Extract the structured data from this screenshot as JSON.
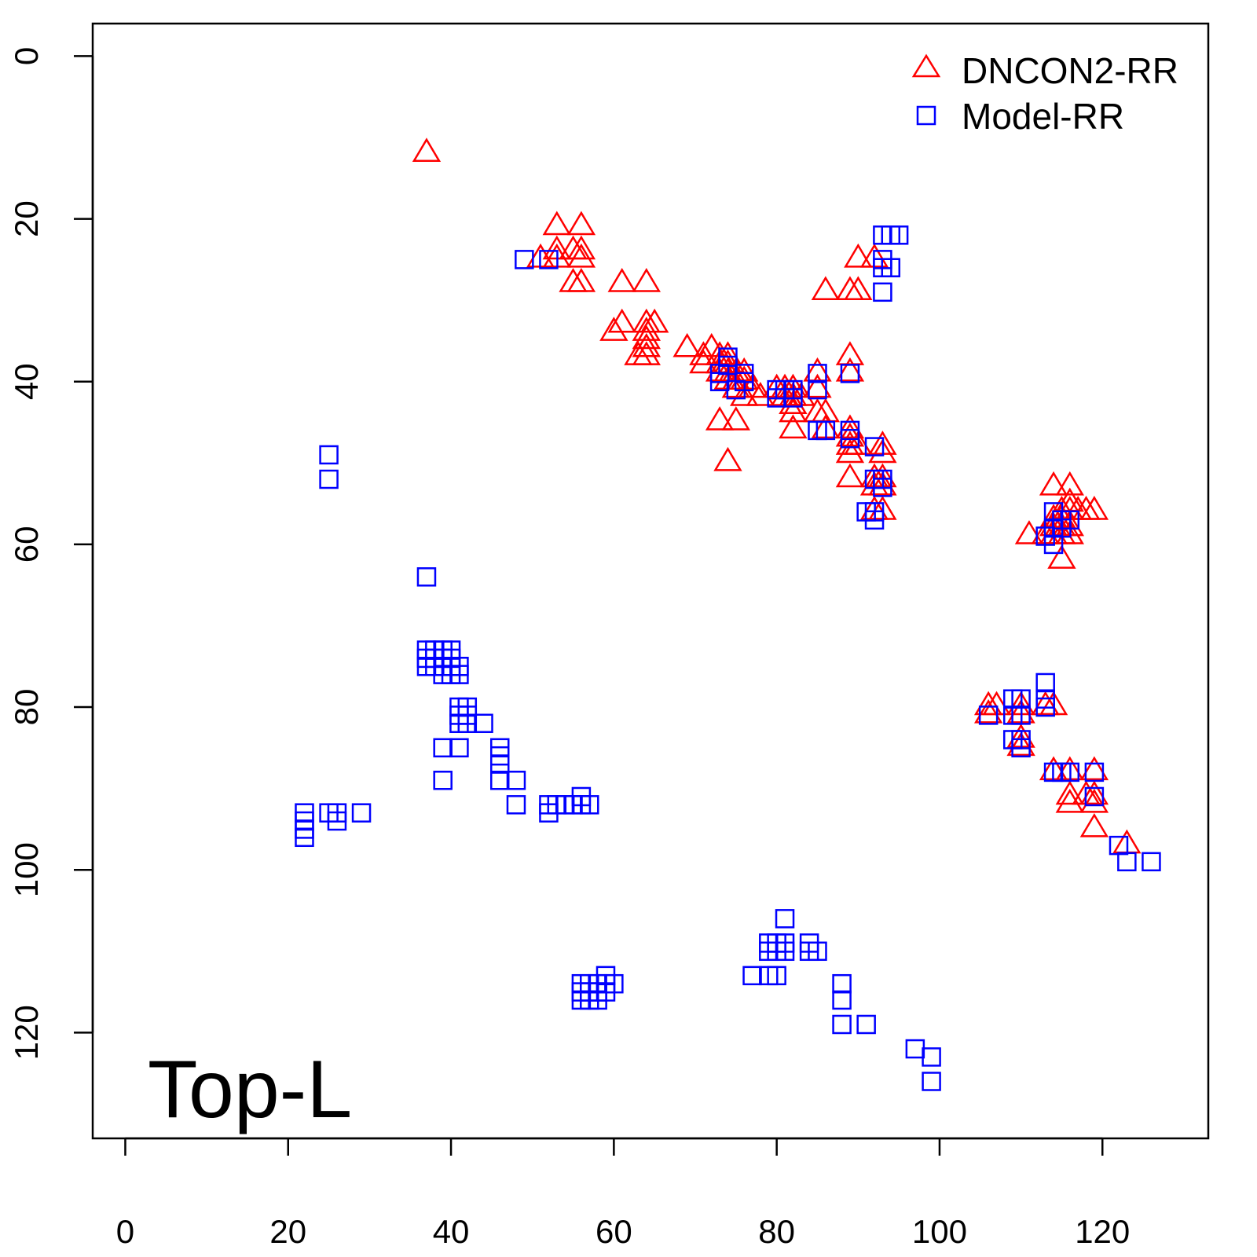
{
  "chart_data": {
    "type": "scatter",
    "title": "",
    "xlabel": "",
    "ylabel": "",
    "xlim": [
      -4,
      133
    ],
    "ylim": [
      133,
      -4
    ],
    "y_reversed": true,
    "x_ticks": [
      0,
      20,
      40,
      60,
      80,
      100,
      120
    ],
    "y_ticks": [
      0,
      20,
      40,
      60,
      80,
      100,
      120
    ],
    "grid": false,
    "legend_position": "top-right",
    "annotation": "Top-L",
    "series": [
      {
        "name": "DNCON2-RR",
        "marker": "triangle",
        "color": "#ff0000",
        "points": [
          [
            37,
            12
          ],
          [
            53,
            21
          ],
          [
            56,
            21
          ],
          [
            51,
            25
          ],
          [
            53,
            24
          ],
          [
            55,
            24
          ],
          [
            56,
            24
          ],
          [
            53,
            25
          ],
          [
            56,
            25
          ],
          [
            55,
            28
          ],
          [
            56,
            28
          ],
          [
            61,
            28
          ],
          [
            64,
            28
          ],
          [
            60,
            34
          ],
          [
            61,
            33
          ],
          [
            64,
            33
          ],
          [
            65,
            33
          ],
          [
            64,
            34
          ],
          [
            64,
            35
          ],
          [
            63,
            37
          ],
          [
            64,
            36
          ],
          [
            64,
            37
          ],
          [
            69,
            36
          ],
          [
            71,
            37
          ],
          [
            72,
            36
          ],
          [
            71,
            38
          ],
          [
            73,
            37
          ],
          [
            73,
            38
          ],
          [
            74,
            37
          ],
          [
            74,
            38
          ],
          [
            73,
            39
          ],
          [
            74,
            39
          ],
          [
            75,
            39
          ],
          [
            74,
            40
          ],
          [
            75,
            40
          ],
          [
            76,
            39
          ],
          [
            76,
            40
          ],
          [
            77,
            41
          ],
          [
            75,
            41
          ],
          [
            76,
            42
          ],
          [
            78,
            42
          ],
          [
            73,
            45
          ],
          [
            75,
            45
          ],
          [
            74,
            50
          ],
          [
            80,
            41
          ],
          [
            81,
            41
          ],
          [
            82,
            41
          ],
          [
            81,
            42
          ],
          [
            82,
            42
          ],
          [
            82,
            43
          ],
          [
            83,
            42
          ],
          [
            82,
            44
          ],
          [
            82,
            46
          ],
          [
            85,
            39
          ],
          [
            85,
            41
          ],
          [
            85,
            44
          ],
          [
            86,
            44
          ],
          [
            86,
            46
          ],
          [
            86,
            29
          ],
          [
            89,
            29
          ],
          [
            90,
            29
          ],
          [
            90,
            25
          ],
          [
            92,
            25
          ],
          [
            89,
            37
          ],
          [
            89,
            39
          ],
          [
            89,
            46
          ],
          [
            89,
            47
          ],
          [
            89,
            48
          ],
          [
            90,
            48
          ],
          [
            89,
            49
          ],
          [
            93,
            48
          ],
          [
            93,
            49
          ],
          [
            89,
            52
          ],
          [
            92,
            52
          ],
          [
            93,
            52
          ],
          [
            92,
            53
          ],
          [
            93,
            53
          ],
          [
            92,
            56
          ],
          [
            93,
            56
          ],
          [
            111,
            59
          ],
          [
            113,
            59
          ],
          [
            114,
            53
          ],
          [
            116,
            53
          ],
          [
            114,
            57
          ],
          [
            115,
            56
          ],
          [
            115,
            57
          ],
          [
            116,
            56
          ],
          [
            116,
            55
          ],
          [
            117,
            56
          ],
          [
            118,
            56
          ],
          [
            119,
            56
          ],
          [
            114,
            58
          ],
          [
            115,
            58
          ],
          [
            116,
            58
          ],
          [
            115,
            59
          ],
          [
            116,
            59
          ],
          [
            114,
            59
          ],
          [
            115,
            62
          ],
          [
            106,
            80
          ],
          [
            107,
            80
          ],
          [
            106,
            81
          ],
          [
            110,
            80
          ],
          [
            110,
            81
          ],
          [
            110,
            84
          ],
          [
            110,
            85
          ],
          [
            113,
            80
          ],
          [
            114,
            80
          ],
          [
            114,
            88
          ],
          [
            116,
            88
          ],
          [
            119,
            88
          ],
          [
            116,
            91
          ],
          [
            116,
            92
          ],
          [
            118,
            91
          ],
          [
            119,
            91
          ],
          [
            119,
            92
          ],
          [
            119,
            95
          ],
          [
            123,
            97
          ]
        ]
      },
      {
        "name": "Model-RR",
        "marker": "square",
        "color": "#0000ff",
        "points": [
          [
            49,
            25
          ],
          [
            52,
            25
          ],
          [
            25,
            49
          ],
          [
            25,
            52
          ],
          [
            37,
            64
          ],
          [
            37,
            73
          ],
          [
            38,
            73
          ],
          [
            39,
            73
          ],
          [
            40,
            73
          ],
          [
            37,
            74
          ],
          [
            38,
            74
          ],
          [
            39,
            74
          ],
          [
            40,
            74
          ],
          [
            37,
            75
          ],
          [
            38,
            75
          ],
          [
            39,
            75
          ],
          [
            40,
            75
          ],
          [
            39,
            76
          ],
          [
            40,
            76
          ],
          [
            41,
            76
          ],
          [
            41,
            75
          ],
          [
            41,
            80
          ],
          [
            42,
            80
          ],
          [
            41,
            81
          ],
          [
            42,
            81
          ],
          [
            41,
            82
          ],
          [
            42,
            82
          ],
          [
            44,
            82
          ],
          [
            39,
            85
          ],
          [
            41,
            85
          ],
          [
            46,
            85
          ],
          [
            46,
            86
          ],
          [
            46,
            87
          ],
          [
            39,
            89
          ],
          [
            46,
            89
          ],
          [
            48,
            89
          ],
          [
            48,
            92
          ],
          [
            22,
            93
          ],
          [
            22,
            94
          ],
          [
            22,
            95
          ],
          [
            22,
            96
          ],
          [
            25,
            93
          ],
          [
            26,
            93
          ],
          [
            26,
            94
          ],
          [
            29,
            93
          ],
          [
            52,
            92
          ],
          [
            52,
            93
          ],
          [
            53,
            92
          ],
          [
            54,
            92
          ],
          [
            55,
            92
          ],
          [
            56,
            91
          ],
          [
            56,
            92
          ],
          [
            57,
            92
          ],
          [
            56,
            114
          ],
          [
            56,
            115
          ],
          [
            56,
            116
          ],
          [
            57,
            114
          ],
          [
            57,
            115
          ],
          [
            57,
            116
          ],
          [
            58,
            114
          ],
          [
            58,
            115
          ],
          [
            58,
            116
          ],
          [
            59,
            113
          ],
          [
            59,
            114
          ],
          [
            59,
            115
          ],
          [
            60,
            114
          ],
          [
            81,
            106
          ],
          [
            79,
            109
          ],
          [
            80,
            109
          ],
          [
            81,
            109
          ],
          [
            79,
            110
          ],
          [
            80,
            110
          ],
          [
            81,
            110
          ],
          [
            84,
            109
          ],
          [
            84,
            110
          ],
          [
            85,
            110
          ],
          [
            77,
            113
          ],
          [
            79,
            113
          ],
          [
            80,
            113
          ],
          [
            88,
            114
          ],
          [
            88,
            116
          ],
          [
            88,
            119
          ],
          [
            91,
            119
          ],
          [
            97,
            122
          ],
          [
            99,
            123
          ],
          [
            99,
            126
          ],
          [
            93,
            22
          ],
          [
            94,
            22
          ],
          [
            95,
            22
          ],
          [
            93,
            25
          ],
          [
            93,
            26
          ],
          [
            94,
            26
          ],
          [
            93,
            29
          ],
          [
            74,
            37
          ],
          [
            74,
            38
          ],
          [
            73,
            39
          ],
          [
            73,
            40
          ],
          [
            76,
            39
          ],
          [
            76,
            40
          ],
          [
            75,
            41
          ],
          [
            80,
            41
          ],
          [
            80,
            42
          ],
          [
            81,
            41
          ],
          [
            82,
            41
          ],
          [
            82,
            42
          ],
          [
            85,
            39
          ],
          [
            85,
            41
          ],
          [
            85,
            46
          ],
          [
            86,
            46
          ],
          [
            89,
            39
          ],
          [
            89,
            46
          ],
          [
            89,
            47
          ],
          [
            92,
            48
          ],
          [
            93,
            52
          ],
          [
            93,
            53
          ],
          [
            92,
            52
          ],
          [
            92,
            56
          ],
          [
            91,
            56
          ],
          [
            92,
            57
          ],
          [
            114,
            56
          ],
          [
            114,
            58
          ],
          [
            115,
            58
          ],
          [
            115,
            57
          ],
          [
            113,
            59
          ],
          [
            114,
            60
          ],
          [
            116,
            57
          ],
          [
            106,
            81
          ],
          [
            109,
            79
          ],
          [
            110,
            79
          ],
          [
            109,
            81
          ],
          [
            110,
            81
          ],
          [
            109,
            84
          ],
          [
            110,
            84
          ],
          [
            110,
            85
          ],
          [
            113,
            77
          ],
          [
            113,
            79
          ],
          [
            113,
            80
          ],
          [
            114,
            88
          ],
          [
            115,
            88
          ],
          [
            116,
            88
          ],
          [
            119,
            88
          ],
          [
            119,
            91
          ],
          [
            122,
            97
          ],
          [
            123,
            99
          ],
          [
            126,
            99
          ]
        ]
      }
    ]
  }
}
